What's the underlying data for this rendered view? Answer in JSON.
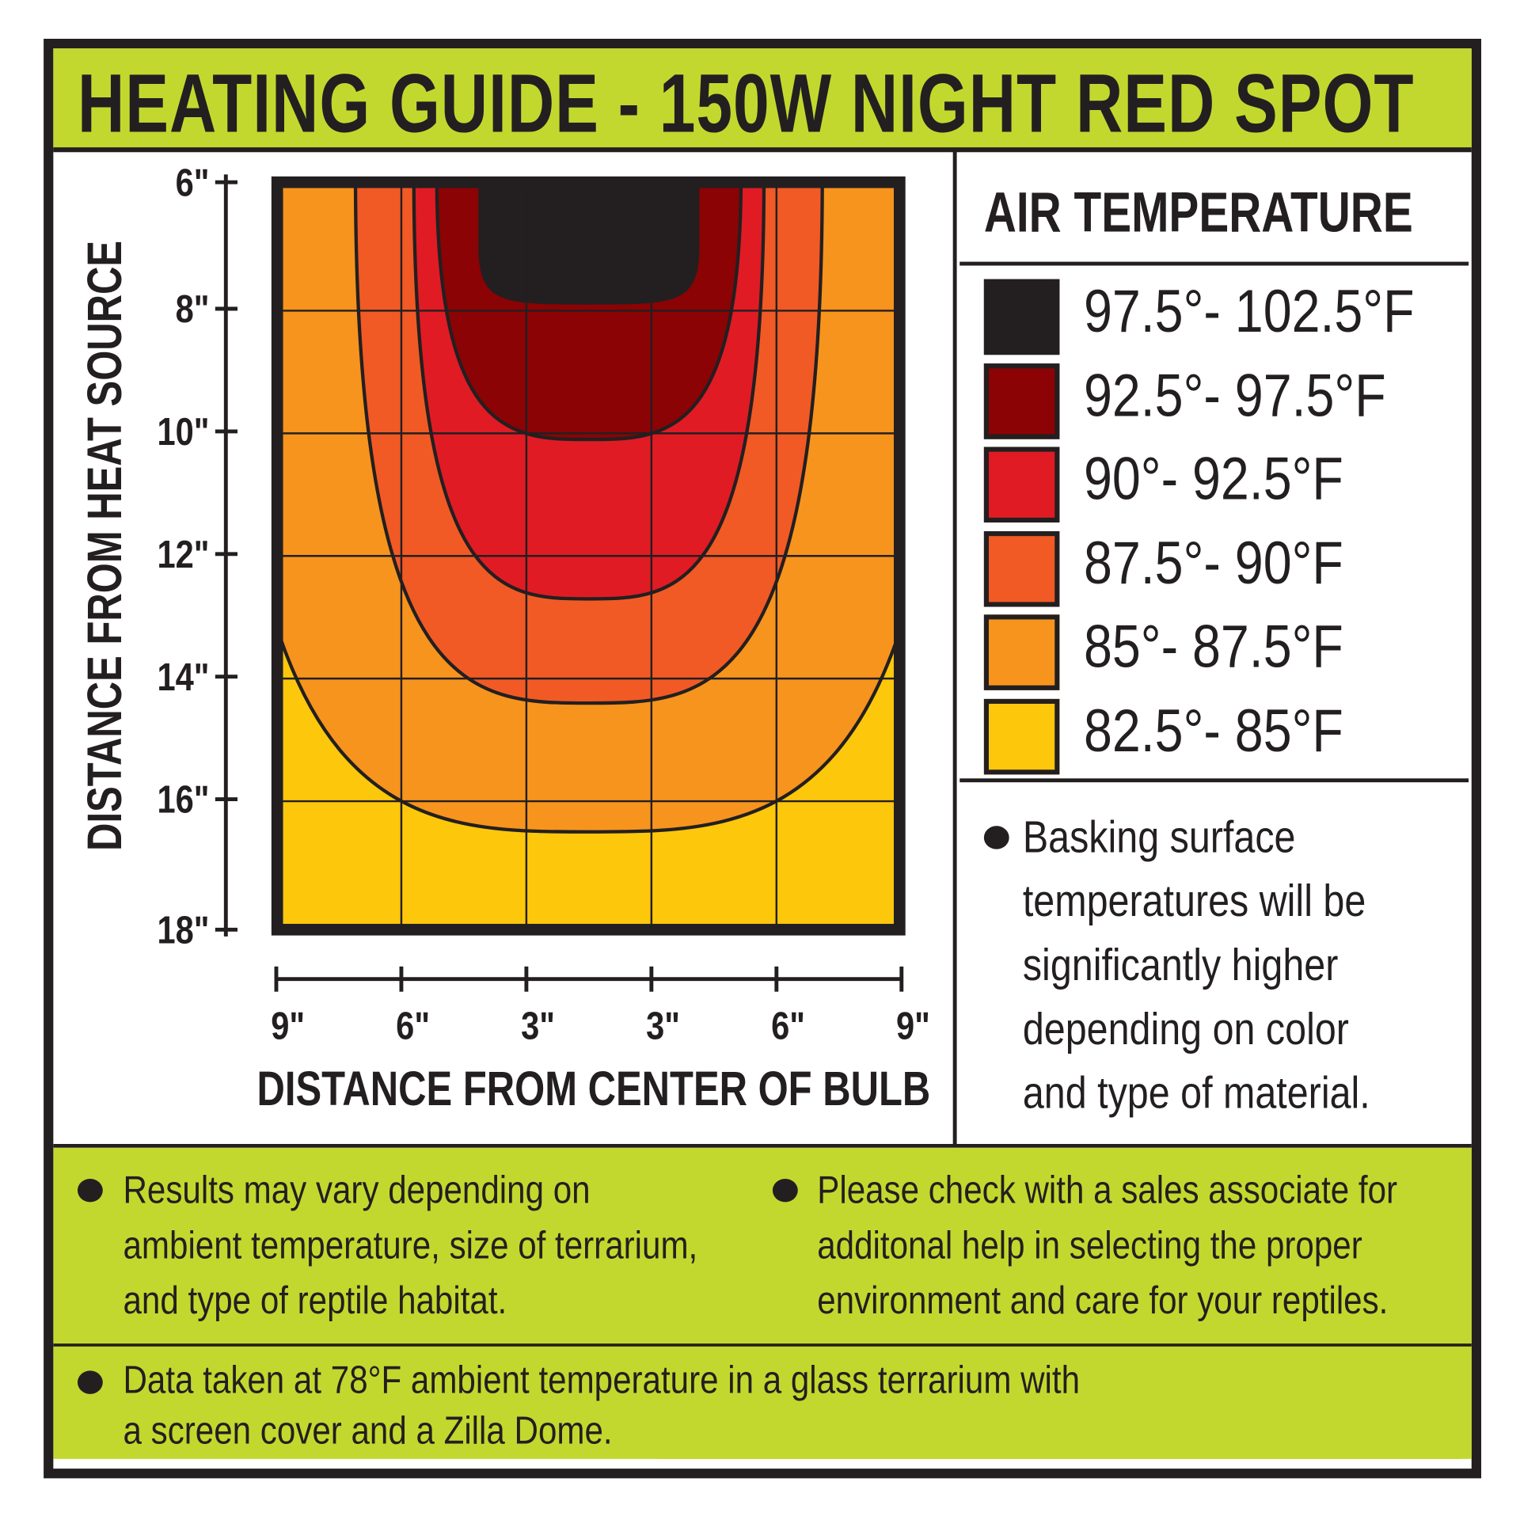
{
  "title": "HEATING GUIDE - 150W NIGHT RED SPOT",
  "legend": {
    "title": "AIR TEMPERATURE",
    "items": [
      {
        "label": "97.5°- 102.5°F",
        "color": "#231f20"
      },
      {
        "label": "92.5°- 97.5°F",
        "color": "#8b0304"
      },
      {
        "label": "90°- 92.5°F",
        "color": "#e01b24"
      },
      {
        "label": "87.5°- 90°F",
        "color": "#f15a24"
      },
      {
        "label": "85°- 87.5°F",
        "color": "#f7941d"
      },
      {
        "label": "82.5°- 85°F",
        "color": "#fdc70c"
      }
    ]
  },
  "side_note": [
    "Basking surface",
    "temperatures will be",
    "significantly higher",
    "depending on color",
    "and type of material."
  ],
  "bottom_notes": {
    "left": [
      "Results may vary depending on",
      "ambient temperature, size of terrarium,",
      "and type of reptile habitat."
    ],
    "right": [
      "Please check with a sales associate for",
      "additonal help in selecting the proper",
      "environment and care for your reptiles."
    ],
    "footer": [
      "Data taken at 78°F ambient temperature in a glass terrarium with",
      "a screen cover and a Zilla Dome."
    ]
  },
  "colors": {
    "accent_green": "#c3d82e",
    "ink": "#231f20"
  },
  "chart_data": {
    "type": "heatmap",
    "xlabel": "DISTANCE FROM CENTER OF BULB",
    "ylabel": "DISTANCE FROM HEAT SOURCE",
    "x_tick_labels": [
      "9\"",
      "6\"",
      "3\"",
      "3\"",
      "6\"",
      "9\""
    ],
    "y_tick_labels": [
      "6\"",
      "8\"",
      "10\"",
      "12\"",
      "14\"",
      "16\"",
      "18\""
    ],
    "y_ticks_in": [
      6,
      8,
      10,
      12,
      14,
      16,
      18
    ],
    "ylim_in": [
      6,
      18
    ],
    "grid": true,
    "background_band": "82.5°- 85°F",
    "contours": [
      {
        "boundary_f": 85,
        "inner_band": "85°- 87.5°F",
        "top_half_width_in": 8.7,
        "max_depth_in": 16.5
      },
      {
        "boundary_f": 87.5,
        "inner_band": "87.5°- 90°F",
        "top_half_width_in": 5.6,
        "max_depth_in": 14.4
      },
      {
        "boundary_f": 90,
        "inner_band": "90°- 92.5°F",
        "top_half_width_in": 4.2,
        "max_depth_in": 12.7
      },
      {
        "boundary_f": 92.5,
        "inner_band": "92.5°- 97.5°F",
        "top_half_width_in": 3.65,
        "max_depth_in": 10.1
      },
      {
        "boundary_f": 97.5,
        "inner_band": "97.5°- 102.5°F",
        "top_half_width_in": 2.65,
        "max_depth_in": 7.9
      }
    ]
  }
}
